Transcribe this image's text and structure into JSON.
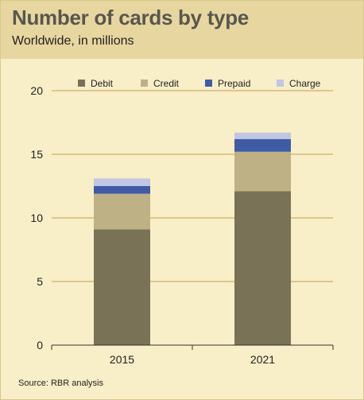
{
  "header": {
    "title": "Number of cards by type",
    "subtitle": "Worldwide, in millions"
  },
  "footer": {
    "source": "Source: RBR analysis"
  },
  "colors": {
    "Debit": "#7a7257",
    "Credit": "#bfb186",
    "Prepaid": "#3f5ba5",
    "Charge": "#c0c6e4"
  },
  "chart_data": {
    "type": "bar",
    "stacked": true,
    "title": "Number of cards by type",
    "subtitle": "Worldwide, in millions",
    "categories": [
      "2015",
      "2021"
    ],
    "series": [
      {
        "name": "Debit",
        "values": [
          9.1,
          12.1
        ]
      },
      {
        "name": "Credit",
        "values": [
          2.8,
          3.1
        ]
      },
      {
        "name": "Prepaid",
        "values": [
          0.6,
          1.0
        ]
      },
      {
        "name": "Charge",
        "values": [
          0.6,
          0.5
        ]
      }
    ],
    "ylim": [
      0,
      20
    ],
    "yticks": [
      0,
      5,
      10,
      15,
      20
    ],
    "grid": true,
    "legend_position": "top"
  }
}
